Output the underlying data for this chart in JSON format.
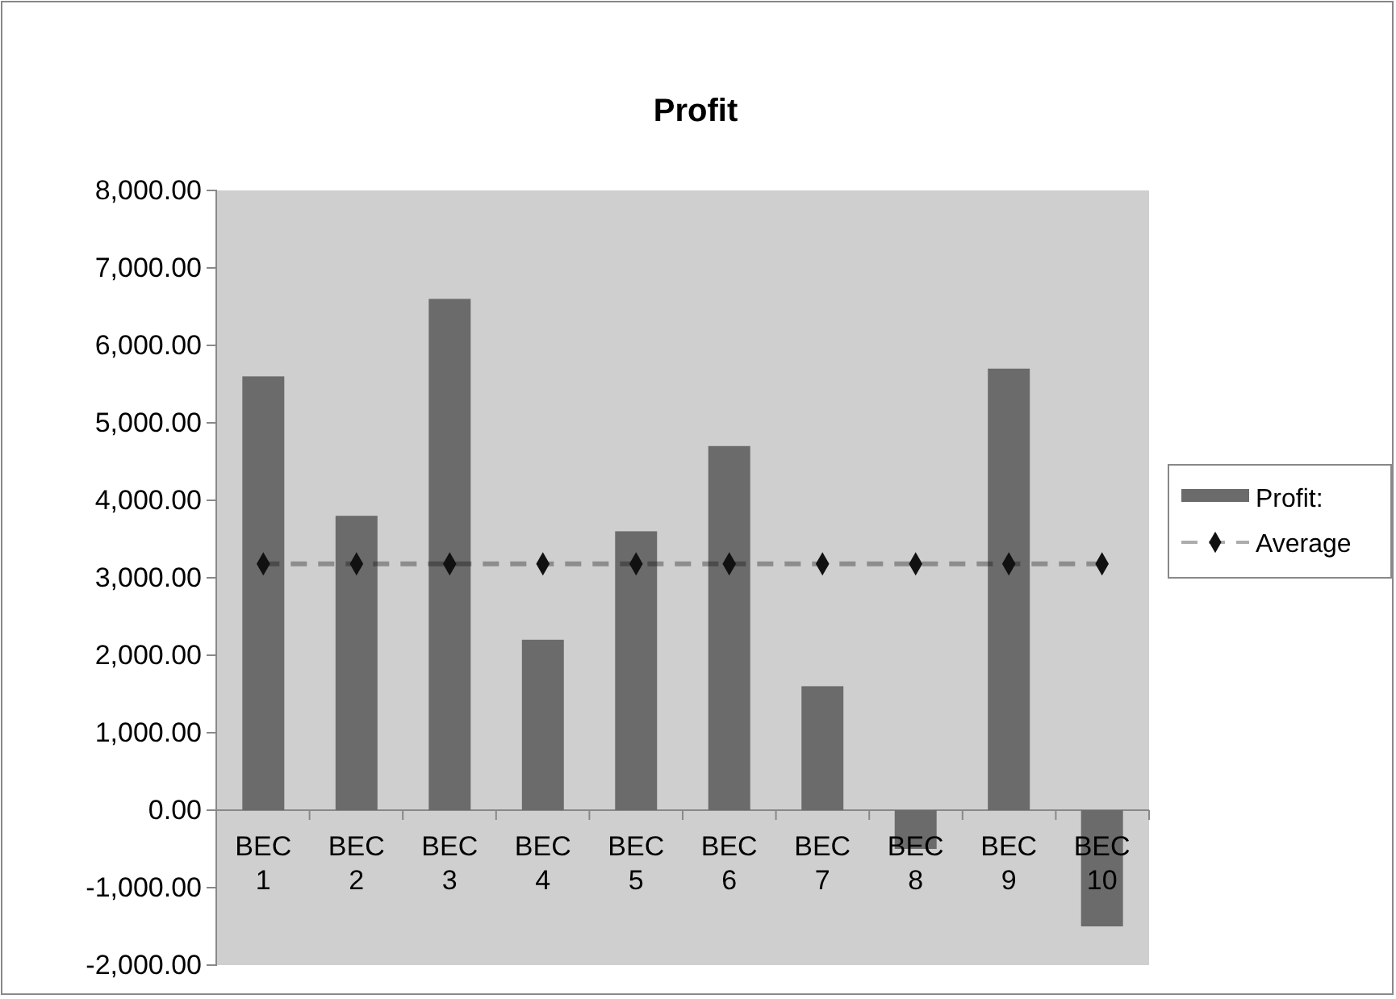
{
  "chart_data": {
    "type": "bar",
    "title": "Profit",
    "categories": [
      "BEC 1",
      "BEC 2",
      "BEC 3",
      "BEC 4",
      "BEC 5",
      "BEC 6",
      "BEC 7",
      "BEC 8",
      "BEC 9",
      "BEC 10"
    ],
    "series": [
      {
        "name": "Profit:",
        "color": "#6b6b6b",
        "values": [
          5600,
          3800,
          6600,
          2200,
          3600,
          4700,
          1600,
          -500,
          5700,
          -1500
        ]
      },
      {
        "name": "Average",
        "type": "line",
        "color": "#111111",
        "marker": "diamond",
        "line_style": "dashed",
        "values": [
          3180,
          3180,
          3180,
          3180,
          3180,
          3180,
          3180,
          3180,
          3180,
          3180
        ]
      }
    ],
    "ylim": [
      -2000,
      8000
    ],
    "yticks": [
      {
        "value": -2000,
        "label": "-2,000.00"
      },
      {
        "value": -1000,
        "label": "-1,000.00"
      },
      {
        "value": 0,
        "label": "0.00"
      },
      {
        "value": 1000,
        "label": "1,000.00"
      },
      {
        "value": 2000,
        "label": "2,000.00"
      },
      {
        "value": 3000,
        "label": "3,000.00"
      },
      {
        "value": 4000,
        "label": "4,000.00"
      },
      {
        "value": 5000,
        "label": "5,000.00"
      },
      {
        "value": 6000,
        "label": "6,000.00"
      },
      {
        "value": 7000,
        "label": "7,000.00"
      },
      {
        "value": 8000,
        "label": "8,000.00"
      }
    ],
    "legend": "right"
  }
}
